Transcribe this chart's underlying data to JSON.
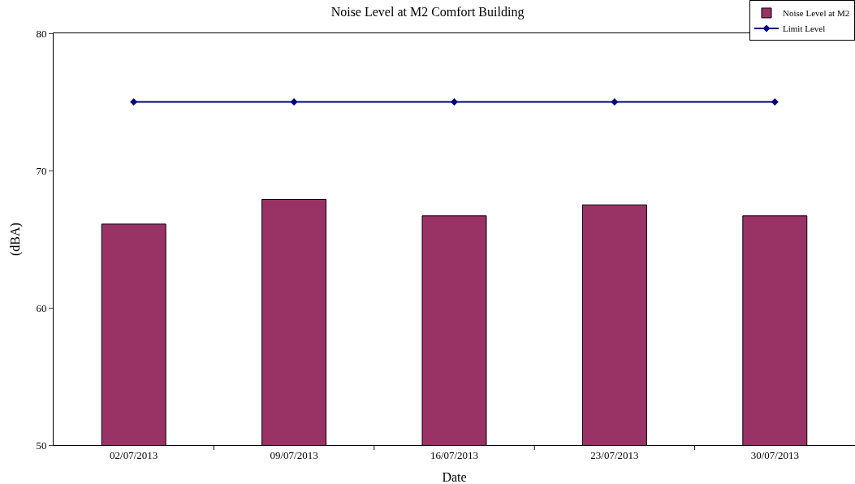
{
  "chart_data": {
    "type": "bar",
    "title": "Noise Level at M2 Comfort Building",
    "xlabel": "Date",
    "ylabel": "(dBA)",
    "categories": [
      "02/07/2013",
      "09/07/2013",
      "16/07/2013",
      "23/07/2013",
      "30/07/2013"
    ],
    "series": [
      {
        "name": "Noise Level at M2",
        "color": "#993366",
        "values": [
          66.1,
          67.9,
          66.7,
          67.5,
          66.7
        ]
      },
      {
        "name": "Limit Level",
        "type": "line",
        "color": "#000080",
        "marker": "diamond",
        "values": [
          75,
          75,
          75,
          75,
          75
        ]
      }
    ],
    "ylim": [
      50,
      80
    ],
    "yticks": [
      50,
      60,
      70,
      80
    ],
    "legend": "top right"
  }
}
